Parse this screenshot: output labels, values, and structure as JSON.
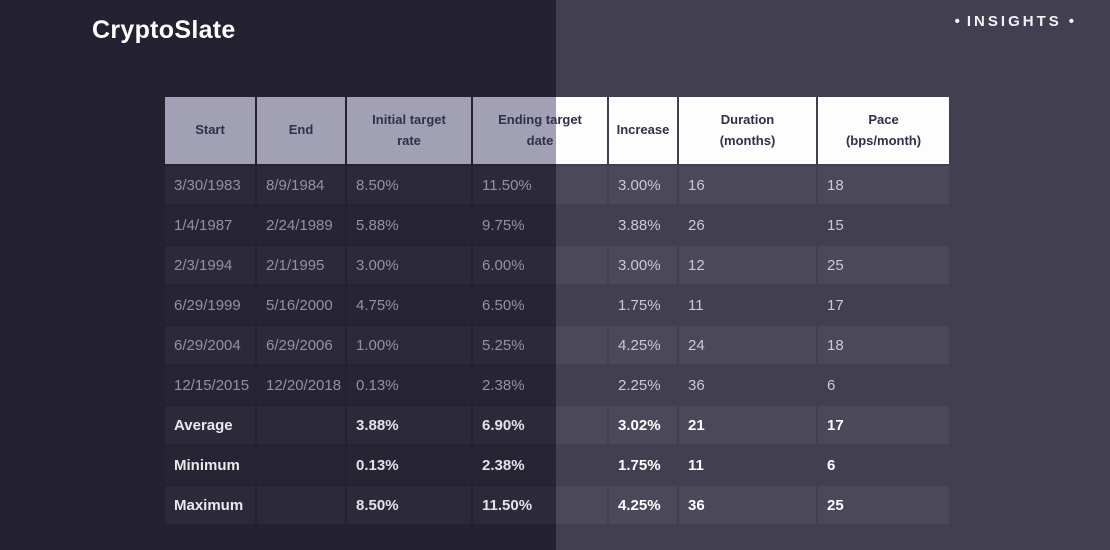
{
  "brand": {
    "name": "CryptoSlate",
    "badge": "INSIGHTS",
    "bullet": "•"
  },
  "colors": {
    "background_left": "#242231",
    "background_right": "#424050",
    "header_fill_shaded": "#a2a0b5",
    "header_fill": "#fdfdfd",
    "header_text": "#312f4a",
    "row_light_left": "#2c2a39",
    "row_dark_left": "#272533",
    "row_light_right": "#4a4859",
    "row_dark_right": "#424050",
    "text_muted": "#94929f",
    "text_bright": "#cbcad7",
    "text_summary": "#ffffff"
  },
  "chart_data": {
    "type": "table",
    "columns": [
      "Start",
      "End",
      "Initial target\nrate",
      "Ending target\ndate",
      "Increase",
      "Duration\n(months)",
      "Pace\n(bps/month)"
    ],
    "rows": [
      {
        "cells": [
          "3/30/1983",
          "8/9/1984",
          "8.50%",
          "11.50%",
          "3.00%",
          "16",
          "18"
        ],
        "summary": false
      },
      {
        "cells": [
          "1/4/1987",
          "2/24/1989",
          "5.88%",
          "9.75%",
          "3.88%",
          "26",
          "15"
        ],
        "summary": false
      },
      {
        "cells": [
          "2/3/1994",
          "2/1/1995",
          "3.00%",
          "6.00%",
          "3.00%",
          "12",
          "25"
        ],
        "summary": false
      },
      {
        "cells": [
          "6/29/1999",
          "5/16/2000",
          "4.75%",
          "6.50%",
          "1.75%",
          "11",
          "17"
        ],
        "summary": false
      },
      {
        "cells": [
          "6/29/2004",
          "6/29/2006",
          "1.00%",
          "5.25%",
          "4.25%",
          "24",
          "18"
        ],
        "summary": false
      },
      {
        "cells": [
          "12/15/2015",
          "12/20/2018",
          "0.13%",
          "2.38%",
          "2.25%",
          "36",
          "6"
        ],
        "summary": false
      },
      {
        "cells": [
          "Average",
          "",
          "3.88%",
          "6.90%",
          "3.02%",
          "21",
          "17"
        ],
        "summary": true
      },
      {
        "cells": [
          "Minimum",
          "",
          "0.13%",
          "2.38%",
          "1.75%",
          "11",
          "6"
        ],
        "summary": true
      },
      {
        "cells": [
          "Maximum",
          "",
          "8.50%",
          "11.50%",
          "4.25%",
          "36",
          "25"
        ],
        "summary": true
      }
    ]
  }
}
